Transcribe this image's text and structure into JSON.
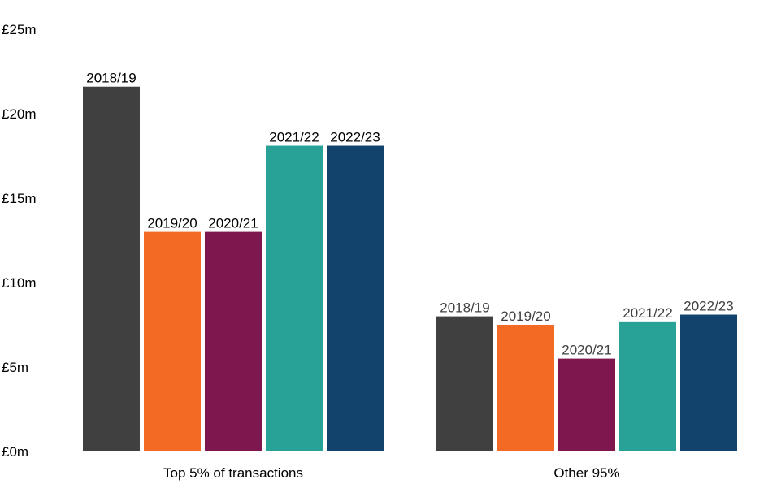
{
  "chart_data": {
    "type": "bar",
    "title": "",
    "xlabel": "",
    "ylabel": "",
    "ylim": [
      0,
      25
    ],
    "y_ticks": [
      "£0m",
      "£5m",
      "£10m",
      "£15m",
      "£20m",
      "£25m"
    ],
    "y_tick_values": [
      0,
      5,
      10,
      15,
      20,
      25
    ],
    "grid": false,
    "legend": "none",
    "categories": [
      "Top 5% of transactions",
      "Other 95%"
    ],
    "series": [
      {
        "label": "2018/19",
        "color": "#404040",
        "values": [
          21.6,
          8.0
        ]
      },
      {
        "label": "2019/20",
        "color": "#F26A24",
        "values": [
          13.0,
          7.5
        ]
      },
      {
        "label": "2020/21",
        "color": "#7E174D",
        "values": [
          13.0,
          5.5
        ]
      },
      {
        "label": "2021/22",
        "color": "#28A197",
        "values": [
          18.1,
          7.7
        ]
      },
      {
        "label": "2022/23",
        "color": "#12436D",
        "values": [
          18.1,
          8.1
        ]
      }
    ],
    "data_label_colors": [
      "#000000",
      "#404040"
    ]
  }
}
